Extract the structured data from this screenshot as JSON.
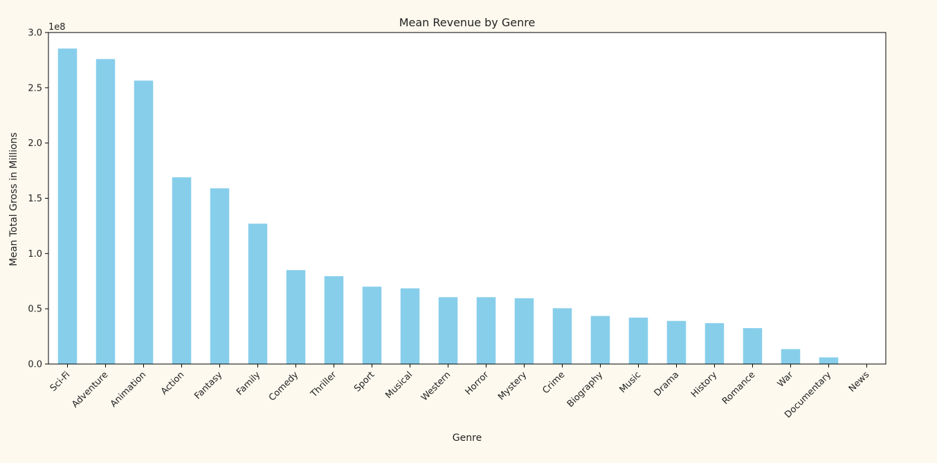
{
  "chart_data": {
    "type": "bar",
    "title": "Mean Revenue by Genre",
    "xlabel": "Genre",
    "ylabel": "Mean Total Gross in Millions",
    "y_offset_label": "1e8",
    "ylim": [
      0,
      3.0
    ],
    "yticks": [
      "0.0",
      "0.5",
      "1.0",
      "1.5",
      "2.0",
      "2.5",
      "3.0"
    ],
    "grid": false,
    "bar_color": "#87ceeb",
    "categories": [
      "Sci-Fi",
      "Adventure",
      "Animation",
      "Action",
      "Fantasy",
      "Family",
      "Comedy",
      "Thriller",
      "Sport",
      "Musical",
      "Western",
      "Horror",
      "Mystery",
      "Crime",
      "Biography",
      "Music",
      "Drama",
      "History",
      "Romance",
      "War",
      "Documentary",
      "News"
    ],
    "values": [
      2.855,
      2.76,
      2.565,
      1.69,
      1.59,
      1.27,
      0.85,
      0.795,
      0.7,
      0.685,
      0.605,
      0.605,
      0.595,
      0.505,
      0.435,
      0.42,
      0.39,
      0.37,
      0.325,
      0.135,
      0.06,
      0.0
    ]
  }
}
